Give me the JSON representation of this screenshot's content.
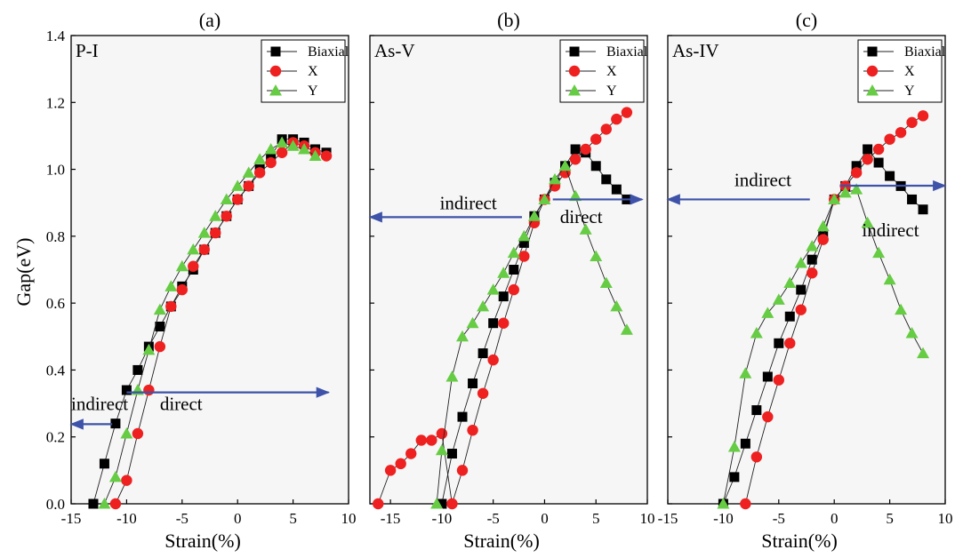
{
  "figure": {
    "ylabel": "Gap(eV)",
    "xlabel": "Strain(%)"
  },
  "colors": {
    "biaxial": "#000000",
    "x": "#ee2020",
    "y": "#66cc44",
    "arrow": "#3d52a8",
    "plot_bg": "#f6f6f6"
  },
  "chart_data": [
    {
      "type": "line",
      "panel": "(a)",
      "label": "P-I",
      "xlim": [
        -15,
        10
      ],
      "ylim": [
        0,
        1.4
      ],
      "xticks": [
        "-15",
        "-10",
        "-5",
        "0",
        "5",
        "10"
      ],
      "yticks": [
        "0.0",
        "0.2",
        "0.4",
        "0.6",
        "0.8",
        "1.0",
        "1.2",
        "1.4"
      ],
      "legend": [
        "Biaxial",
        "X",
        "Y"
      ],
      "legend_position": "top-right",
      "series": [
        {
          "name": "Biaxial",
          "marker": "square",
          "x": [
            -13,
            -12,
            -11,
            -10,
            -9,
            -8,
            -7,
            -6,
            -5,
            -4,
            -3,
            -2,
            -1,
            0,
            1,
            2,
            3,
            4,
            5,
            6,
            7,
            8
          ],
          "y": [
            0.0,
            0.12,
            0.24,
            0.34,
            0.4,
            0.47,
            0.53,
            0.59,
            0.65,
            0.7,
            0.76,
            0.81,
            0.86,
            0.91,
            0.95,
            1.0,
            1.04,
            1.09,
            1.09,
            1.08,
            1.06,
            1.05
          ]
        },
        {
          "name": "X",
          "marker": "circle",
          "x": [
            -11,
            -10,
            -9,
            -8,
            -7,
            -6,
            -5,
            -4,
            -3,
            -2,
            -1,
            0,
            1,
            2,
            3,
            4,
            5,
            6,
            7,
            8
          ],
          "y": [
            0.0,
            0.07,
            0.21,
            0.34,
            0.47,
            0.59,
            0.64,
            0.71,
            0.76,
            0.81,
            0.86,
            0.91,
            0.95,
            0.99,
            1.02,
            1.05,
            1.08,
            1.07,
            1.05,
            1.04
          ]
        },
        {
          "name": "Y",
          "marker": "triangle",
          "x": [
            -12,
            -11,
            -10,
            -9,
            -8,
            -7,
            -6,
            -5,
            -4,
            -3,
            -2,
            -1,
            0,
            1,
            2,
            3,
            4,
            5,
            6,
            7
          ],
          "y": [
            0.0,
            0.08,
            0.21,
            0.34,
            0.46,
            0.58,
            0.65,
            0.71,
            0.76,
            0.81,
            0.86,
            0.91,
            0.95,
            0.99,
            1.03,
            1.06,
            1.08,
            1.07,
            1.06,
            1.04
          ]
        }
      ],
      "annotations": [
        {
          "text": "indirect",
          "x": -15,
          "y": 0.28
        },
        {
          "text": "direct",
          "x": -7,
          "y": 0.28
        }
      ],
      "arrows": [
        {
          "x1": -11.3,
          "y1": 0.238,
          "x2": -15,
          "y2": 0.238
        },
        {
          "x1": -10,
          "y1": 0.333,
          "x2": 8.2,
          "y2": 0.333
        }
      ]
    },
    {
      "type": "line",
      "panel": "(b)",
      "label": "As-V",
      "xlim": [
        -17,
        10
      ],
      "ylim": [
        0,
        1.4
      ],
      "xticks": [
        "-15",
        "-10",
        "-5",
        "0",
        "5",
        "10"
      ],
      "legend": [
        "Biaxial",
        "X",
        "Y"
      ],
      "legend_position": "top-right",
      "series": [
        {
          "name": "Biaxial",
          "marker": "square",
          "x": [
            -10,
            -9,
            -8,
            -7,
            -6,
            -5,
            -4,
            -3,
            -2,
            -1,
            0,
            1,
            2,
            3,
            4,
            5,
            6,
            7,
            8
          ],
          "y": [
            0.0,
            0.15,
            0.26,
            0.36,
            0.45,
            0.54,
            0.62,
            0.7,
            0.78,
            0.86,
            0.91,
            0.96,
            1.01,
            1.06,
            1.05,
            1.01,
            0.97,
            0.94,
            0.91
          ]
        },
        {
          "name": "X",
          "marker": "circle",
          "x": [
            -16.2,
            -15,
            -14,
            -13,
            -12,
            -11,
            -10,
            -9,
            -8,
            -7,
            -6,
            -5,
            -4,
            -3,
            -2,
            -1,
            0,
            1,
            2,
            3,
            4,
            5,
            6,
            7,
            8
          ],
          "y": [
            0.0,
            0.1,
            0.12,
            0.15,
            0.19,
            0.19,
            0.21,
            0.0,
            0.1,
            0.22,
            0.33,
            0.43,
            0.54,
            0.64,
            0.74,
            0.84,
            0.91,
            0.95,
            0.99,
            1.03,
            1.06,
            1.09,
            1.12,
            1.15,
            1.17
          ]
        },
        {
          "name": "Y",
          "marker": "triangle",
          "x": [
            -10.5,
            -10,
            -9,
            -8,
            -7,
            -6,
            -5,
            -4,
            -3,
            -2,
            -1,
            0,
            1,
            2,
            3,
            4,
            5,
            6,
            7,
            8
          ],
          "y": [
            0.0,
            0.16,
            0.38,
            0.5,
            0.54,
            0.59,
            0.64,
            0.69,
            0.75,
            0.8,
            0.86,
            0.91,
            0.97,
            1.01,
            0.92,
            0.82,
            0.74,
            0.66,
            0.59,
            0.52
          ]
        }
      ],
      "annotations": [
        {
          "text": "indirect",
          "x": -10.2,
          "y": 0.88
        },
        {
          "text": "direct",
          "x": 1.5,
          "y": 0.84
        }
      ],
      "arrows": [
        {
          "x1": -2.2,
          "y1": 0.857,
          "x2": -17,
          "y2": 0.857
        },
        {
          "x1": 0.8,
          "y1": 0.91,
          "x2": 9.5,
          "y2": 0.91
        }
      ]
    },
    {
      "type": "line",
      "panel": "(c)",
      "label": "As-IV",
      "xlim": [
        -15,
        10
      ],
      "ylim": [
        0,
        1.4
      ],
      "xticks": [
        "-15",
        "-10",
        "-5",
        "0",
        "5",
        "10"
      ],
      "legend": [
        "Biaxial",
        "X",
        "Y"
      ],
      "legend_position": "top-right",
      "series": [
        {
          "name": "Biaxial",
          "marker": "square",
          "x": [
            -10,
            -9,
            -8,
            -7,
            -6,
            -5,
            -4,
            -3,
            -2,
            -1,
            0,
            1,
            2,
            3,
            4,
            5,
            6,
            7,
            8
          ],
          "y": [
            0.0,
            0.08,
            0.18,
            0.28,
            0.38,
            0.48,
            0.56,
            0.64,
            0.73,
            0.8,
            0.91,
            0.95,
            1.01,
            1.06,
            1.02,
            0.98,
            0.95,
            0.91,
            0.88
          ]
        },
        {
          "name": "X",
          "marker": "circle",
          "x": [
            -8,
            -7,
            -6,
            -5,
            -4,
            -3,
            -2,
            -1,
            0,
            1,
            2,
            3,
            4,
            5,
            6,
            7,
            8
          ],
          "y": [
            0.0,
            0.14,
            0.26,
            0.37,
            0.48,
            0.58,
            0.69,
            0.79,
            0.91,
            0.95,
            0.99,
            1.03,
            1.06,
            1.09,
            1.11,
            1.14,
            1.16
          ]
        },
        {
          "name": "Y",
          "marker": "triangle",
          "x": [
            -10,
            -9,
            -8,
            -7,
            -6,
            -5,
            -4,
            -3,
            -2,
            -1,
            0,
            1,
            2,
            3,
            4,
            5,
            6,
            7,
            8
          ],
          "y": [
            0.0,
            0.17,
            0.39,
            0.51,
            0.57,
            0.61,
            0.66,
            0.72,
            0.77,
            0.83,
            0.91,
            0.93,
            0.94,
            0.84,
            0.75,
            0.67,
            0.58,
            0.51,
            0.45
          ]
        }
      ],
      "annotations": [
        {
          "text": "indirect",
          "x": -9,
          "y": 0.95
        },
        {
          "text": "indirect",
          "x": 2.5,
          "y": 0.8
        }
      ],
      "arrows": [
        {
          "x1": -2.2,
          "y1": 0.91,
          "x2": -15,
          "y2": 0.91
        },
        {
          "x1": 0.5,
          "y1": 0.951,
          "x2": 10,
          "y2": 0.951
        }
      ]
    }
  ]
}
